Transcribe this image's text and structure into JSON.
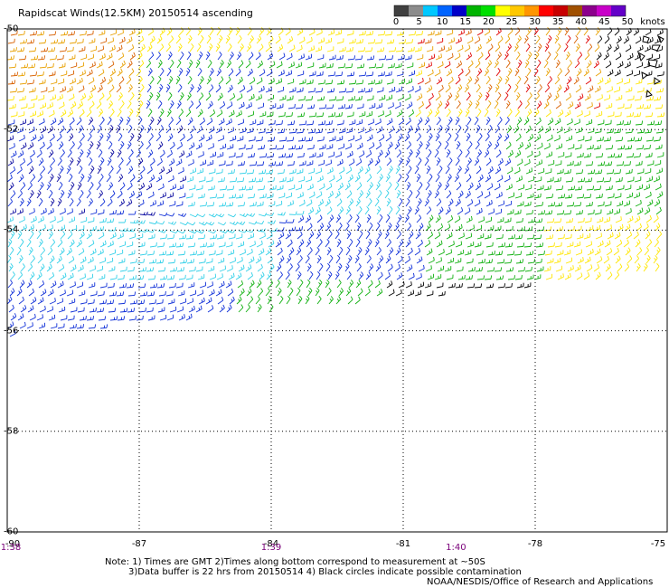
{
  "title": "Rapidscat Winds(12.5KM) 20150514 ascending",
  "colorbar": {
    "ticks": [
      "0",
      "5",
      "10",
      "15",
      "20",
      "25",
      "30",
      "35",
      "40",
      "45",
      "50"
    ],
    "unit": "knots",
    "colors": [
      "#404040",
      "#8c8c8c",
      "#00c8ff",
      "#0064ff",
      "#0000c8",
      "#00b400",
      "#00e000",
      "#ffff00",
      "#ffc800",
      "#ff9600",
      "#ff0000",
      "#c80000",
      "#a05000",
      "#8c008c",
      "#c800c8",
      "#6400c8"
    ]
  },
  "axes": {
    "lon_ticks": [
      "-90",
      "-87",
      "-84",
      "-81",
      "-78",
      "-75"
    ],
    "lat_ticks": [
      "-50",
      "-52",
      "-54",
      "-56",
      "-58",
      "-60"
    ],
    "time_labels": [
      {
        "lon": -90,
        "text": "1:38"
      },
      {
        "lon": -84,
        "text": "1:39"
      },
      {
        "lon": -79.8,
        "text": "1:40"
      }
    ],
    "lon_range": [
      -90,
      -75
    ],
    "lat_range": [
      -60,
      -50
    ]
  },
  "notes": {
    "line1": "Note: 1) Times are GMT 2)Times along bottom correspond to measurement at ~50S",
    "line2": "3)Data buffer is 22 hrs from 20150514 4) Black circles indicate possible contamination",
    "credit": "NOAA/NESDIS/Office of Research and Applications"
  },
  "wind_field": {
    "speed_regions_knots": [
      {
        "area": "northwest corner",
        "speed_range": [
          25,
          30
        ]
      },
      {
        "area": "northeast (around -80 to -77, -50.5 to -52)",
        "speed_range": [
          30,
          40
        ]
      },
      {
        "area": "central band (-54)",
        "speed_range": [
          5,
          15
        ]
      },
      {
        "area": "southern edge (-55.5 to -56)",
        "speed_range": [
          0,
          20
        ]
      }
    ]
  }
}
